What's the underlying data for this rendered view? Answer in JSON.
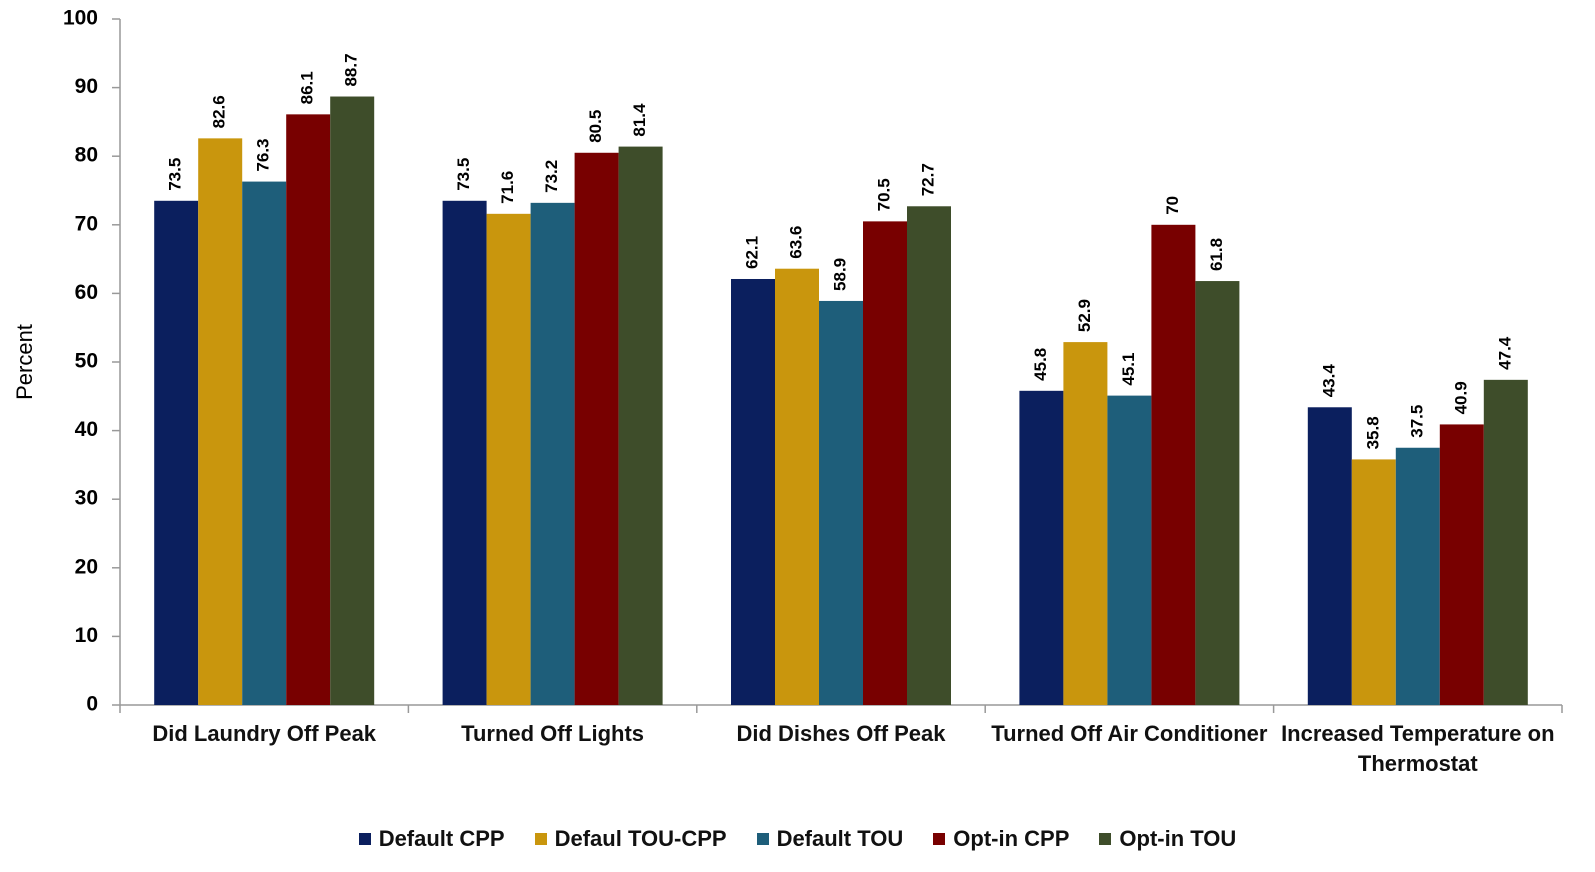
{
  "chart_data": {
    "type": "bar",
    "y_label": "Percent",
    "categories": [
      "Did Laundry Off Peak",
      "Turned Off Lights",
      "Did Dishes Off Peak",
      "Turned Off Air Conditioner",
      "Increased Temperature on Thermostat"
    ],
    "series": [
      {
        "name": "Default CPP",
        "color": "#0b1f5e",
        "values": [
          73.5,
          73.5,
          62.1,
          45.8,
          43.4
        ]
      },
      {
        "name": "Defaul TOU-CPP",
        "color": "#c9960d",
        "values": [
          82.6,
          71.6,
          63.6,
          52.9,
          35.8
        ]
      },
      {
        "name": "Default TOU",
        "color": "#1e5e7a",
        "values": [
          76.3,
          73.2,
          58.9,
          45.1,
          37.5
        ]
      },
      {
        "name": "Opt-in CPP",
        "color": "#780000",
        "values": [
          86.1,
          80.5,
          70.5,
          70,
          40.9
        ]
      },
      {
        "name": "Opt-in TOU",
        "color": "#3e4d2a",
        "values": [
          88.7,
          81.4,
          72.7,
          61.8,
          47.4
        ]
      }
    ],
    "ylim": [
      0,
      100
    ],
    "yticks": [
      0,
      10,
      20,
      30,
      40,
      50,
      60,
      70,
      80,
      90,
      100
    ],
    "legend": "bottom"
  }
}
